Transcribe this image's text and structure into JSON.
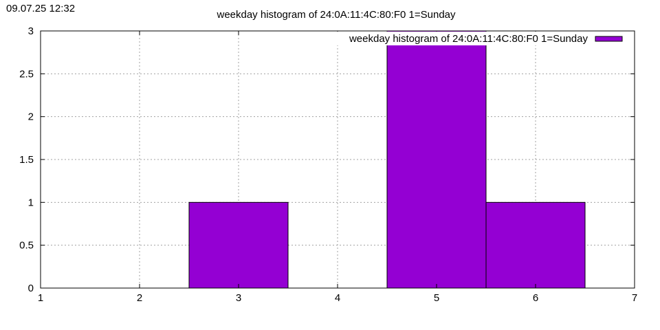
{
  "timestamp": "09.07.25 12:32",
  "chart_data": {
    "type": "bar",
    "title": "weekday histogram of 24:0A:11:4C:80:F0 1=Sunday",
    "legend": {
      "label": "weekday histogram of 24:0A:11:4C:80:F0 1=Sunday",
      "placement": "top-right"
    },
    "x": [
      3,
      5,
      6
    ],
    "values": [
      1,
      3,
      1
    ],
    "bar_width": 1,
    "xlim": [
      1,
      7
    ],
    "ylim": [
      0,
      3
    ],
    "xticks": [
      1,
      2,
      3,
      4,
      5,
      6,
      7
    ],
    "yticks": [
      0,
      0.5,
      1,
      1.5,
      2,
      2.5,
      3
    ],
    "ytick_labels": [
      "0",
      "0.5",
      "1",
      "1.5",
      "2",
      "2.5",
      "3"
    ],
    "grid": true,
    "bar_color": "#9400d3"
  }
}
